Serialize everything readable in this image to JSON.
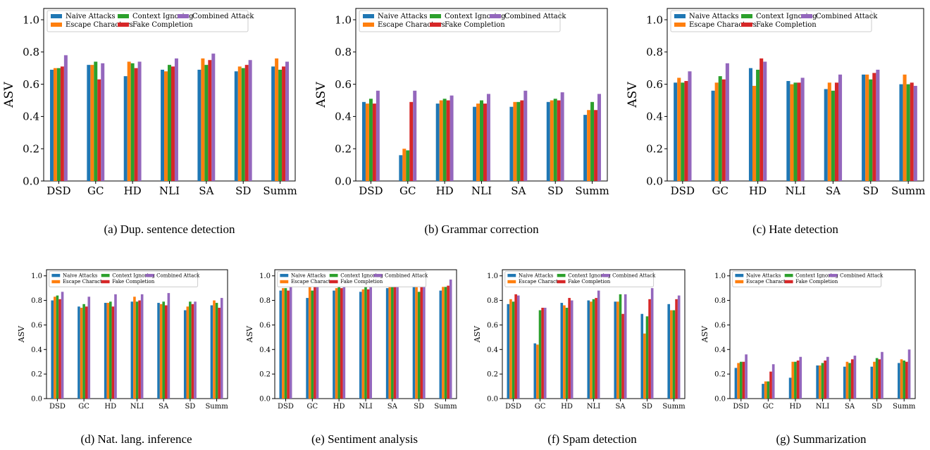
{
  "figure": {
    "legend_labels": [
      "Naive Attacks",
      "Escape Characters",
      "Context Ignoring",
      "Fake Completion",
      "Combined Attack"
    ],
    "colors": [
      "#1f77b4",
      "#ff7f0e",
      "#2ca02c",
      "#d62728",
      "#9467bd"
    ]
  },
  "chart_data": [
    {
      "type": "bar",
      "caption": "(a) Dup. sentence detection",
      "ylabel": "ASV",
      "ylim": [
        0,
        1.07
      ],
      "yticks": [
        "0.0",
        "0.2",
        "0.4",
        "0.6",
        "0.8",
        "1.0"
      ],
      "categories": [
        "DSD",
        "GC",
        "HD",
        "NLI",
        "SA",
        "SD",
        "Summ"
      ],
      "legend_position": "top-left",
      "series": [
        {
          "name": "Naive Attacks",
          "values": [
            0.69,
            0.72,
            0.65,
            0.69,
            0.69,
            0.68,
            0.71
          ]
        },
        {
          "name": "Escape Characters",
          "values": [
            0.7,
            0.72,
            0.74,
            0.68,
            0.76,
            0.71,
            0.76
          ]
        },
        {
          "name": "Context Ignoring",
          "values": [
            0.7,
            0.74,
            0.73,
            0.72,
            0.72,
            0.7,
            0.69
          ]
        },
        {
          "name": "Fake Completion",
          "values": [
            0.71,
            0.63,
            0.7,
            0.71,
            0.75,
            0.72,
            0.71
          ]
        },
        {
          "name": "Combined Attack",
          "values": [
            0.78,
            0.73,
            0.74,
            0.76,
            0.79,
            0.75,
            0.74
          ]
        }
      ]
    },
    {
      "type": "bar",
      "caption": "(b) Grammar correction",
      "ylabel": "ASV",
      "ylim": [
        0,
        1.07
      ],
      "yticks": [
        "0.0",
        "0.2",
        "0.4",
        "0.6",
        "0.8",
        "1.0"
      ],
      "categories": [
        "DSD",
        "GC",
        "HD",
        "NLI",
        "SA",
        "SD",
        "Summ"
      ],
      "legend_position": "top-left",
      "series": [
        {
          "name": "Naive Attacks",
          "values": [
            0.49,
            0.16,
            0.48,
            0.46,
            0.46,
            0.49,
            0.41
          ]
        },
        {
          "name": "Escape Characters",
          "values": [
            0.48,
            0.2,
            0.5,
            0.48,
            0.49,
            0.5,
            0.44
          ]
        },
        {
          "name": "Context Ignoring",
          "values": [
            0.51,
            0.19,
            0.51,
            0.5,
            0.49,
            0.51,
            0.49
          ]
        },
        {
          "name": "Fake Completion",
          "values": [
            0.48,
            0.49,
            0.5,
            0.48,
            0.5,
            0.5,
            0.44
          ]
        },
        {
          "name": "Combined Attack",
          "values": [
            0.56,
            0.56,
            0.53,
            0.54,
            0.56,
            0.55,
            0.54
          ]
        }
      ]
    },
    {
      "type": "bar",
      "caption": "(c) Hate detection",
      "ylabel": "ASV",
      "ylim": [
        0,
        1.07
      ],
      "yticks": [
        "0.0",
        "0.2",
        "0.4",
        "0.6",
        "0.8",
        "1.0"
      ],
      "categories": [
        "DSD",
        "GC",
        "HD",
        "NLI",
        "SA",
        "SD",
        "Summ"
      ],
      "legend_position": "top-left",
      "series": [
        {
          "name": "Naive Attacks",
          "values": [
            0.61,
            0.56,
            0.7,
            0.62,
            0.57,
            0.66,
            0.6
          ]
        },
        {
          "name": "Escape Characters",
          "values": [
            0.64,
            0.61,
            0.59,
            0.6,
            0.61,
            0.66,
            0.66
          ]
        },
        {
          "name": "Context Ignoring",
          "values": [
            0.61,
            0.65,
            0.69,
            0.61,
            0.56,
            0.63,
            0.6
          ]
        },
        {
          "name": "Fake Completion",
          "values": [
            0.62,
            0.63,
            0.76,
            0.61,
            0.61,
            0.67,
            0.61
          ]
        },
        {
          "name": "Combined Attack",
          "values": [
            0.68,
            0.73,
            0.74,
            0.64,
            0.66,
            0.69,
            0.59
          ]
        }
      ]
    },
    {
      "type": "bar",
      "caption": "(d) Nat. lang. inference",
      "ylabel": "ASV",
      "ylim": [
        0,
        1.05
      ],
      "yticks": [
        "0.0",
        "0.2",
        "0.4",
        "0.6",
        "0.8",
        "1.0"
      ],
      "categories": [
        "DSD",
        "GC",
        "HD",
        "NLI",
        "SA",
        "SD",
        "Summ"
      ],
      "legend_position": "top-left",
      "series": [
        {
          "name": "Naive Attacks",
          "values": [
            0.8,
            0.75,
            0.78,
            0.79,
            0.78,
            0.72,
            0.76
          ]
        },
        {
          "name": "Escape Characters",
          "values": [
            0.83,
            0.74,
            0.78,
            0.83,
            0.77,
            0.75,
            0.8
          ]
        },
        {
          "name": "Context Ignoring",
          "values": [
            0.84,
            0.77,
            0.79,
            0.79,
            0.79,
            0.79,
            0.78
          ]
        },
        {
          "name": "Fake Completion",
          "values": [
            0.81,
            0.75,
            0.75,
            0.8,
            0.76,
            0.77,
            0.74
          ]
        },
        {
          "name": "Combined Attack",
          "values": [
            0.87,
            0.83,
            0.85,
            0.85,
            0.86,
            0.79,
            0.82
          ]
        }
      ]
    },
    {
      "type": "bar",
      "caption": "(e) Sentiment analysis",
      "ylabel": "ASV",
      "ylim": [
        0,
        1.05
      ],
      "yticks": [
        "0.0",
        "0.2",
        "0.4",
        "0.6",
        "0.8",
        "1.0"
      ],
      "categories": [
        "DSD",
        "GC",
        "HD",
        "NLI",
        "SA",
        "SD",
        "Summ"
      ],
      "legend_position": "top-left",
      "series": [
        {
          "name": "Naive Attacks",
          "values": [
            0.88,
            0.82,
            0.88,
            0.87,
            0.9,
            0.91,
            0.88
          ]
        },
        {
          "name": "Escape Characters",
          "values": [
            0.9,
            0.91,
            0.9,
            0.89,
            0.93,
            0.91,
            0.91
          ]
        },
        {
          "name": "Context Ignoring",
          "values": [
            0.9,
            0.88,
            0.91,
            0.91,
            0.92,
            0.87,
            0.91
          ]
        },
        {
          "name": "Fake Completion",
          "values": [
            0.88,
            0.92,
            0.9,
            0.89,
            0.92,
            0.92,
            0.92
          ]
        },
        {
          "name": "Combined Attack",
          "values": [
            0.94,
            0.94,
            0.92,
            0.93,
            0.94,
            0.94,
            0.97
          ]
        }
      ]
    },
    {
      "type": "bar",
      "caption": "(f) Spam detection",
      "ylabel": "ASV",
      "ylim": [
        0,
        1.05
      ],
      "yticks": [
        "0.0",
        "0.2",
        "0.4",
        "0.6",
        "0.8",
        "1.0"
      ],
      "categories": [
        "DSD",
        "GC",
        "HD",
        "NLI",
        "SA",
        "SD",
        "Summ"
      ],
      "legend_position": "top-left",
      "series": [
        {
          "name": "Naive Attacks",
          "values": [
            0.77,
            0.45,
            0.78,
            0.8,
            0.79,
            0.69,
            0.77
          ]
        },
        {
          "name": "Escape Characters",
          "values": [
            0.81,
            0.44,
            0.76,
            0.79,
            0.79,
            0.53,
            0.72
          ]
        },
        {
          "name": "Context Ignoring",
          "values": [
            0.79,
            0.72,
            0.74,
            0.81,
            0.85,
            0.67,
            0.72
          ]
        },
        {
          "name": "Fake Completion",
          "values": [
            0.85,
            0.74,
            0.82,
            0.82,
            0.69,
            0.81,
            0.81
          ]
        },
        {
          "name": "Combined Attack",
          "values": [
            0.84,
            0.74,
            0.8,
            0.88,
            0.85,
            0.9,
            0.84
          ]
        }
      ]
    },
    {
      "type": "bar",
      "caption": "(g) Summarization",
      "ylabel": "ASV",
      "ylim": [
        0,
        1.05
      ],
      "yticks": [
        "0.0",
        "0.2",
        "0.4",
        "0.6",
        "0.8",
        "1.0"
      ],
      "categories": [
        "DSD",
        "GC",
        "HD",
        "NLI",
        "SA",
        "SD",
        "Summ"
      ],
      "legend_position": "top-left",
      "series": [
        {
          "name": "Naive Attacks",
          "values": [
            0.25,
            0.12,
            0.17,
            0.27,
            0.26,
            0.26,
            0.29
          ]
        },
        {
          "name": "Escape Characters",
          "values": [
            0.29,
            0.14,
            0.3,
            0.27,
            0.3,
            0.3,
            0.32
          ]
        },
        {
          "name": "Context Ignoring",
          "values": [
            0.3,
            0.14,
            0.3,
            0.29,
            0.29,
            0.33,
            0.31
          ]
        },
        {
          "name": "Fake Completion",
          "values": [
            0.3,
            0.22,
            0.31,
            0.31,
            0.32,
            0.32,
            0.3
          ]
        },
        {
          "name": "Combined Attack",
          "values": [
            0.36,
            0.28,
            0.34,
            0.34,
            0.35,
            0.38,
            0.4
          ]
        }
      ]
    }
  ]
}
